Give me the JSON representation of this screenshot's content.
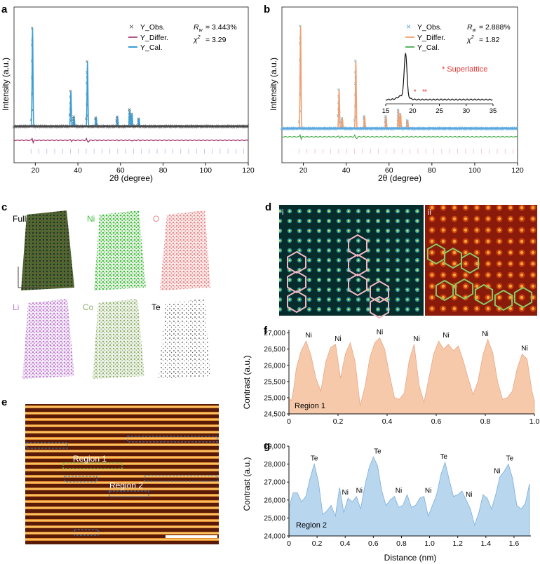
{
  "panels": {
    "a": {
      "letter": "a",
      "legend": [
        "Y_Obs.",
        "Y_Differ.",
        "Y_Cal."
      ],
      "stat_rw": "= 3.443%",
      "stat_chi": "= 3.29",
      "ylabel": "Intensity (a.u.)",
      "xlabel": "2θ (degree)",
      "xticks": [
        "20",
        "40",
        "60",
        "80",
        "100",
        "120"
      ]
    },
    "b": {
      "letter": "b",
      "legend": [
        "Y_Obs.",
        "Y_Differ.",
        "Y_Cal."
      ],
      "stat_rw": "= 2.888%",
      "stat_chi": "= 1.82",
      "ylabel": "Intensity (a.u.)",
      "xlabel": "2θ (degree)",
      "xticks": [
        "20",
        "40",
        "60",
        "80",
        "100",
        "120"
      ],
      "superlattice": "* Superlattice",
      "inset_xticks": [
        "15",
        "20",
        "25",
        "30",
        "35"
      ]
    },
    "c": {
      "letter": "c",
      "maps": [
        "Full",
        "Ni",
        "O",
        "Li",
        "Co",
        "Te"
      ]
    },
    "d": {
      "letter": "d",
      "sub": [
        "i",
        "ii"
      ]
    },
    "e": {
      "letter": "e",
      "regions": [
        "Region 1",
        "Region 2"
      ]
    },
    "f": {
      "letter": "f",
      "ylabel": "Contrast (a.u.)",
      "region": "Region 1",
      "yticks": [
        "27,000",
        "26,500",
        "26,000",
        "25,500",
        "25,000",
        "24,500"
      ],
      "xticks": [
        "0",
        "0.2",
        "0.4",
        "0.6",
        "0.8",
        "1.0"
      ],
      "peaks": [
        "Ni",
        "Ni",
        "Ni",
        "Ni",
        "Ni",
        "Ni",
        "Ni"
      ]
    },
    "g": {
      "letter": "g",
      "ylabel": "Contrast (a.u.)",
      "region": "Region 2",
      "xlabel": "Distance (nm)",
      "yticks": [
        "29,000",
        "28,000",
        "27,000",
        "26,000",
        "25,000",
        "24,000"
      ],
      "xticks": [
        "0",
        "0.2",
        "0.4",
        "0.6",
        "0.8",
        "1.0",
        "1.2",
        "1.4",
        "1.6"
      ],
      "peaks": [
        "Te",
        "Ni",
        "Ni",
        "Te",
        "Ni",
        "Ni",
        "Te",
        "Ni",
        "Ni",
        "Te"
      ]
    }
  },
  "chart_data": [
    {
      "type": "line",
      "title": "a",
      "xlabel": "2θ (degree)",
      "ylabel": "Intensity (a.u.)",
      "xlim": [
        10,
        120
      ],
      "peaks_2theta": [
        18.7,
        36.7,
        38.2,
        44.5,
        48.6,
        58.6,
        64.4,
        65.4,
        68.7
      ],
      "peak_rel_intensity": [
        1.0,
        0.36,
        0.1,
        0.66,
        0.09,
        0.1,
        0.17,
        0.13,
        0.08
      ],
      "series": [
        {
          "name": "Y_Obs."
        },
        {
          "name": "Y_Differ."
        },
        {
          "name": "Y_Cal."
        }
      ]
    },
    {
      "type": "line",
      "title": "b",
      "xlabel": "2θ (degree)",
      "ylabel": "Intensity (a.u.)",
      "xlim": [
        10,
        120
      ],
      "peaks_2theta": [
        18.7,
        36.7,
        38.2,
        44.5,
        48.6,
        58.6,
        64.4,
        65.4,
        68.7
      ],
      "peak_rel_intensity": [
        1.0,
        0.38,
        0.1,
        0.66,
        0.12,
        0.12,
        0.18,
        0.14,
        0.08
      ],
      "inset": {
        "xlim": [
          15,
          35
        ],
        "peak": 18.7,
        "superlattice_marks": [
          20.6,
          22.2,
          22.6
        ]
      },
      "series": [
        {
          "name": "Y_Obs."
        },
        {
          "name": "Y_Differ."
        },
        {
          "name": "Y_Cal."
        }
      ]
    },
    {
      "type": "area",
      "title": "f",
      "xlabel": "Distance (nm)",
      "ylabel": "Contrast (a.u.)",
      "xlim": [
        0,
        1.0
      ],
      "ylim": [
        24500,
        27100
      ],
      "x": [
        0,
        0.01,
        0.02,
        0.03,
        0.05,
        0.07,
        0.09,
        0.11,
        0.13,
        0.15,
        0.17,
        0.19,
        0.21,
        0.23,
        0.25,
        0.27,
        0.29,
        0.31,
        0.33,
        0.35,
        0.37,
        0.39,
        0.41,
        0.43,
        0.45,
        0.47,
        0.49,
        0.51,
        0.53,
        0.55,
        0.57,
        0.59,
        0.61,
        0.63,
        0.65,
        0.67,
        0.69,
        0.71,
        0.73,
        0.75,
        0.77,
        0.79,
        0.81,
        0.83,
        0.85,
        0.87,
        0.89,
        0.91,
        0.93,
        0.95,
        0.97,
        0.99,
        1.0
      ],
      "y": [
        25000,
        24900,
        25300,
        25900,
        26450,
        26750,
        26300,
        25600,
        25200,
        26100,
        26550,
        26650,
        25600,
        26350,
        26700,
        26100,
        24750,
        25350,
        26250,
        26700,
        26850,
        26500,
        25700,
        25000,
        24950,
        25150,
        26150,
        26650,
        25400,
        24850,
        25600,
        26350,
        26750,
        26500,
        26650,
        26450,
        26600,
        26150,
        25600,
        25100,
        25500,
        26300,
        26800,
        26400,
        25500,
        24950,
        25000,
        25200,
        25900,
        26350,
        26200,
        25200,
        24900
      ],
      "peak_labels": [
        {
          "x": 0.08,
          "label": "Ni"
        },
        {
          "x": 0.2,
          "label": "Ni"
        },
        {
          "x": 0.37,
          "label": "Ni"
        },
        {
          "x": 0.52,
          "label": "Ni"
        },
        {
          "x": 0.64,
          "label": "Ni"
        },
        {
          "x": 0.8,
          "label": "Ni"
        },
        {
          "x": 0.96,
          "label": "Ni"
        }
      ]
    },
    {
      "type": "area",
      "title": "g",
      "xlabel": "Distance (nm)",
      "ylabel": "Contrast (a.u.)",
      "xlim": [
        0,
        1.72
      ],
      "ylim": [
        24000,
        29000
      ],
      "x": [
        0,
        0.03,
        0.06,
        0.09,
        0.12,
        0.15,
        0.18,
        0.21,
        0.24,
        0.27,
        0.3,
        0.33,
        0.36,
        0.39,
        0.42,
        0.45,
        0.48,
        0.51,
        0.54,
        0.57,
        0.6,
        0.63,
        0.66,
        0.69,
        0.72,
        0.75,
        0.78,
        0.81,
        0.84,
        0.87,
        0.9,
        0.93,
        0.96,
        0.99,
        1.02,
        1.05,
        1.08,
        1.11,
        1.14,
        1.17,
        1.2,
        1.23,
        1.26,
        1.29,
        1.32,
        1.35,
        1.38,
        1.41,
        1.44,
        1.47,
        1.5,
        1.53,
        1.56,
        1.59,
        1.62,
        1.65,
        1.68,
        1.71
      ],
      "y": [
        25600,
        26400,
        26400,
        25900,
        26200,
        27200,
        28000,
        27000,
        25200,
        25400,
        25700,
        25100,
        26700,
        25300,
        26100,
        25900,
        26200,
        25500,
        26800,
        27800,
        28400,
        27900,
        26500,
        25700,
        26000,
        26200,
        25600,
        25700,
        26300,
        25600,
        25700,
        26100,
        26200,
        25100,
        25700,
        26300,
        27400,
        28100,
        27100,
        26200,
        26300,
        26500,
        26000,
        25500,
        24600,
        25300,
        26300,
        26100,
        25500,
        26300,
        27300,
        27600,
        28000,
        27200,
        25700,
        25500,
        25800,
        26900
      ],
      "peak_labels": [
        {
          "x": 0.18,
          "label": "Te"
        },
        {
          "x": 0.4,
          "label": "Ni"
        },
        {
          "x": 0.5,
          "label": "Ni"
        },
        {
          "x": 0.63,
          "label": "Te"
        },
        {
          "x": 0.78,
          "label": "Ni"
        },
        {
          "x": 0.99,
          "label": "Ni"
        },
        {
          "x": 1.1,
          "label": "Te"
        },
        {
          "x": 1.28,
          "label": "Ni"
        },
        {
          "x": 1.48,
          "label": "Ni"
        },
        {
          "x": 1.57,
          "label": "Te"
        }
      ]
    }
  ],
  "colors": {
    "obs": "#555555",
    "cal": "#3a9fd6",
    "diff_a": "#a0306a",
    "obs_b": "#5aa8e0",
    "cal_b": "#f0a070",
    "diff_b": "#4caf50",
    "ni_map": "#3fbf3f",
    "o_map": "#e88a8a",
    "li_map": "#c080d0",
    "co_map": "#8fae6a",
    "te_map": "#222222",
    "full_map": "#5b7a3a",
    "f_fill": "#f6c9aa",
    "g_fill": "#b8d6ee",
    "superlattice": "#e53935"
  }
}
